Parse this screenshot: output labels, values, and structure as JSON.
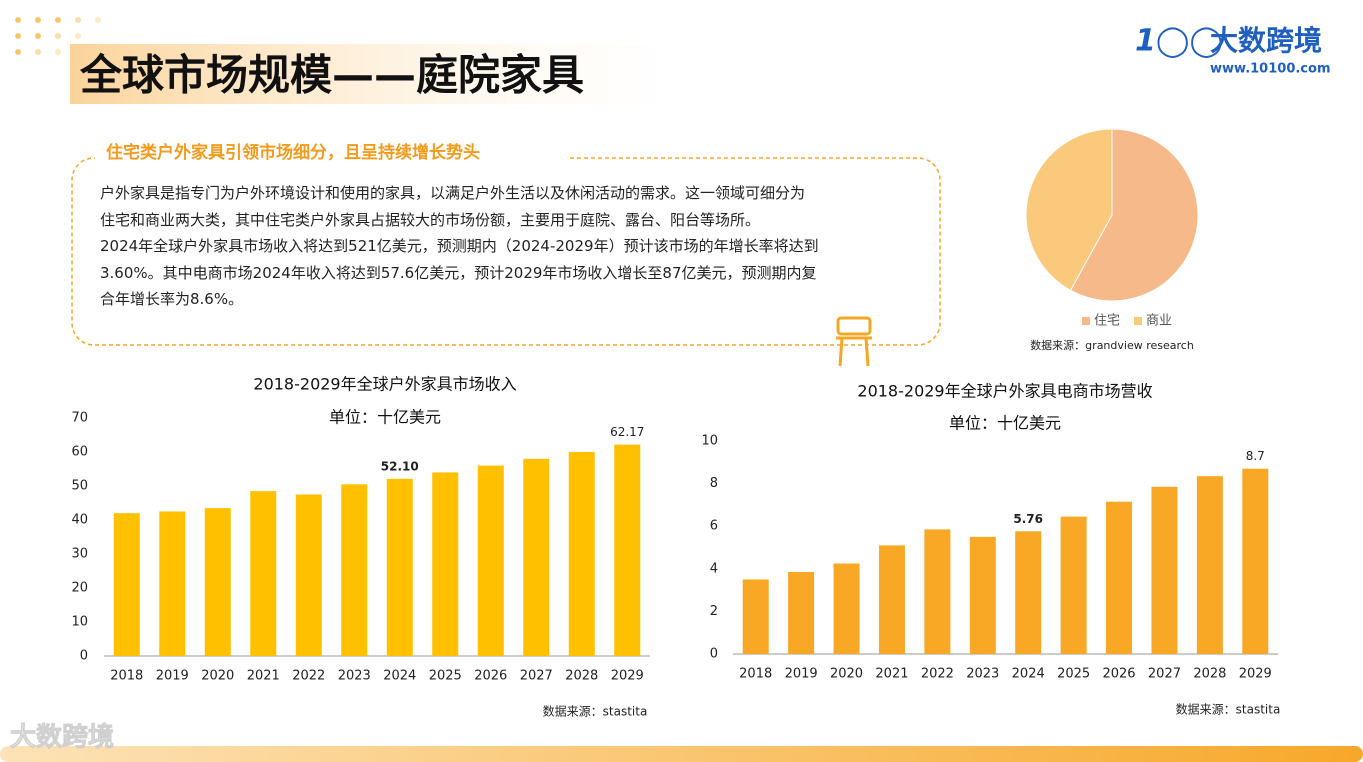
{
  "header": {
    "title": "全球市场规模——庭院家具",
    "logo": "大数跨境",
    "website": "www.10100.com",
    "watermark": "大数跨境"
  },
  "summary": {
    "heading": "住宅类户外家具引领市场细分，且呈持续增长势头",
    "lines": [
      "户外家具是指专门为户外环境设计和使用的家具，以满足户外生活以及休闲活动的需求。这一领域可细分为",
      "住宅和商业两大类，其中住宅类户外家具占据较大的市场份额，主要用于庭院、露台、阳台等场所。",
      "2024年全球户外家具市场收入将达到521亿美元，预测期内（2024-2029年）预计该市场的年增长率将达到",
      "3.60%。其中电商市场2024年收入将达到57.6亿美元，预计2029年市场收入增长至87亿美元，预测期内复",
      "合年增长率为8.6%。"
    ]
  },
  "chart_data": [
    {
      "type": "pie",
      "categories": [
        "住宅",
        "商业"
      ],
      "values": [
        58,
        42
      ],
      "colors": [
        "#f5b98a",
        "#fbc97c"
      ],
      "source": "数据来源：grandview research",
      "legend": "bottom"
    },
    {
      "type": "bar",
      "title": "2018-2029年全球户外家具市场收入",
      "subtitle": "单位：十亿美元",
      "categories": [
        "2018",
        "2019",
        "2020",
        "2021",
        "2022",
        "2023",
        "2024",
        "2025",
        "2026",
        "2027",
        "2028",
        "2029"
      ],
      "values": [
        42,
        42.5,
        43.5,
        48.5,
        47.5,
        50.5,
        52.1,
        54,
        56,
        58,
        60,
        62.17
      ],
      "value_labels": [
        null,
        null,
        null,
        null,
        null,
        null,
        "52.10",
        null,
        null,
        null,
        null,
        "62.17"
      ],
      "color": "#ffc000",
      "ylim": [
        0,
        70
      ],
      "yticks": [
        0,
        10,
        20,
        30,
        40,
        50,
        60,
        70
      ],
      "source": "数据来源：stastita"
    },
    {
      "type": "bar",
      "title": "2018-2029年全球户外家具电商市场营收",
      "subtitle": "单位：十亿美元",
      "categories": [
        "2018",
        "2019",
        "2020",
        "2021",
        "2022",
        "2023",
        "2024",
        "2025",
        "2026",
        "2027",
        "2028",
        "2029"
      ],
      "values": [
        3.5,
        3.85,
        4.25,
        5.1,
        5.85,
        5.5,
        5.76,
        6.45,
        7.15,
        7.85,
        8.35,
        8.7
      ],
      "value_labels": [
        null,
        null,
        null,
        null,
        null,
        null,
        "5.76",
        null,
        null,
        null,
        null,
        "8.7"
      ],
      "color": "#f9a825",
      "ylim": [
        0,
        10
      ],
      "yticks": [
        0,
        2,
        4,
        6,
        8,
        10
      ],
      "source": "数据来源：stastita"
    }
  ]
}
